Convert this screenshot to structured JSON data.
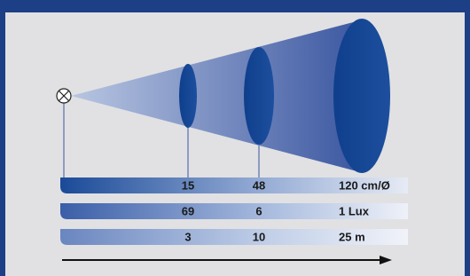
{
  "scale_rows": [
    [
      "15",
      "48",
      "120 cm/Ø"
    ],
    [
      "69",
      "6",
      "1 Lux"
    ],
    [
      "3",
      "10",
      "25 m"
    ]
  ]
}
